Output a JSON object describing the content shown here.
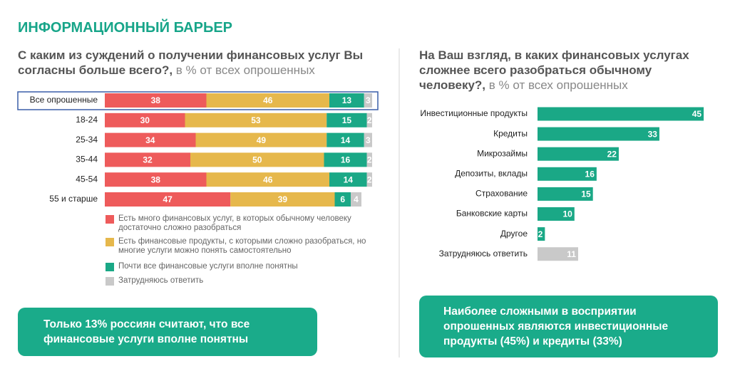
{
  "header": {
    "title": "ИНФОРМАЦИОННЫЙ БАРЬЕР"
  },
  "chart_data": [
    {
      "type": "bar",
      "horizontal": true,
      "stacked": true,
      "title": "С каким из суждений о получении финансовых услуг Вы согласны больше всего?,",
      "subtitle": "в % от всех опрошенных",
      "categories": [
        "Все опрошенные",
        "18-24",
        "25-34",
        "35-44",
        "45-54",
        "55 и старше"
      ],
      "series": [
        {
          "name": "Есть много финансовых услуг, в которых обычному человеку достаточно сложно разобраться",
          "color": "#ee5b5b",
          "values": [
            38,
            30,
            34,
            32,
            38,
            47
          ]
        },
        {
          "name": "Есть финансовые продукты, с которыми сложно разобраться, но многие услуги можно понять самостоятельно",
          "color": "#e6b84c",
          "values": [
            46,
            53,
            49,
            50,
            46,
            39
          ]
        },
        {
          "name": "Почти все финансовые услуги вполне понятны",
          "color": "#1aa886",
          "values": [
            13,
            15,
            14,
            16,
            14,
            6
          ]
        },
        {
          "name": "Затрудняюсь ответить",
          "color": "#c9c9c9",
          "values": [
            3,
            2,
            3,
            2,
            2,
            4
          ]
        }
      ],
      "note": "Только 13% россиян считают, что все финансовые услуги вполне понятны"
    },
    {
      "type": "bar",
      "horizontal": true,
      "title": "На Ваш взгляд, в каких финансовых услугах сложнее всего разобраться обычному человеку?,",
      "subtitle": "в % от всех опрошенных",
      "categories": [
        "Инвестиционные продукты",
        "Кредиты",
        "Микрозаймы",
        "Депозиты, вклады",
        "Страхование",
        "Банковские карты",
        "Другое",
        "Затрудняюсь ответить"
      ],
      "values": [
        45,
        33,
        22,
        16,
        15,
        10,
        2,
        11
      ],
      "colors": [
        "#1aa886",
        "#1aa886",
        "#1aa886",
        "#1aa886",
        "#1aa886",
        "#1aa886",
        "#1aa886",
        "#c9c9c9"
      ],
      "note": "Наиболее сложными в восприятии опрошенных являются инвестиционные продукты (45%) и кредиты (33%)"
    }
  ]
}
